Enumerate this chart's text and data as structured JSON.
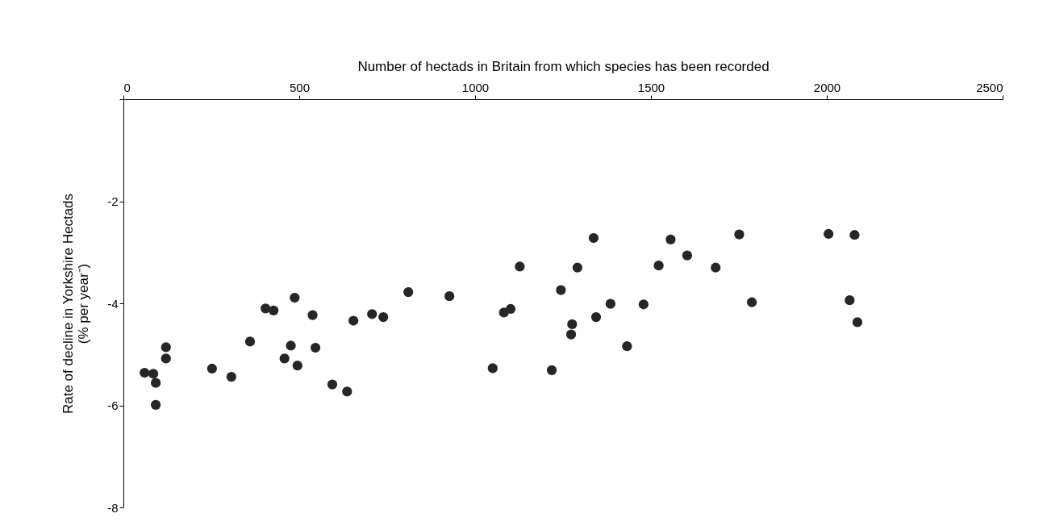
{
  "chart_data": {
    "type": "scatter",
    "xlabel": "Number of hectads in Britain from which species has been recorded",
    "ylabel": "Rate of decline in Yorkshire Hectads\n(% per year⁻)",
    "x": [
      60,
      85,
      92,
      92,
      121,
      121,
      252,
      307,
      360,
      404,
      427,
      487,
      476,
      458,
      495,
      538,
      546,
      594,
      636,
      654,
      707,
      739,
      810,
      927,
      1050,
      1082,
      1101,
      1127,
      1337,
      1291,
      1244,
      1385,
      1479,
      1276,
      1273,
      1344,
      1432,
      1218,
      1556,
      1522,
      1603,
      1684,
      1751,
      1787,
      2005,
      2079,
      2065,
      2087
    ],
    "series": [
      {
        "color": "#262626",
        "values": [
          -5.36,
          -5.38,
          -5.56,
          -5.99,
          -4.86,
          -5.08,
          -5.28,
          -5.44,
          -4.75,
          -4.1,
          -4.14,
          -3.89,
          -4.83,
          -5.08,
          -5.22,
          -4.23,
          -4.87,
          -5.59,
          -5.73,
          -4.34,
          -4.21,
          -4.27,
          -3.78,
          -3.86,
          -5.27,
          -4.18,
          -4.11,
          -3.28,
          -2.72,
          -3.3,
          -3.74,
          -4.01,
          -4.02,
          -4.41,
          -4.61,
          -4.27,
          -4.84,
          -5.31,
          -2.75,
          -3.26,
          -3.06,
          -3.3,
          -2.65,
          -3.98,
          -2.64,
          -2.66,
          -3.94,
          -4.37
        ]
      }
    ],
    "xlim": [
      0,
      2500
    ],
    "xticks": [
      0,
      500,
      1000,
      1500,
      2000,
      2500
    ],
    "ylim": [
      -8,
      0
    ],
    "yticks": [
      -8,
      -6,
      -4,
      -2,
      {
        "value": 0,
        "label": null
      }
    ],
    "marker": "circle",
    "grid": false
  }
}
